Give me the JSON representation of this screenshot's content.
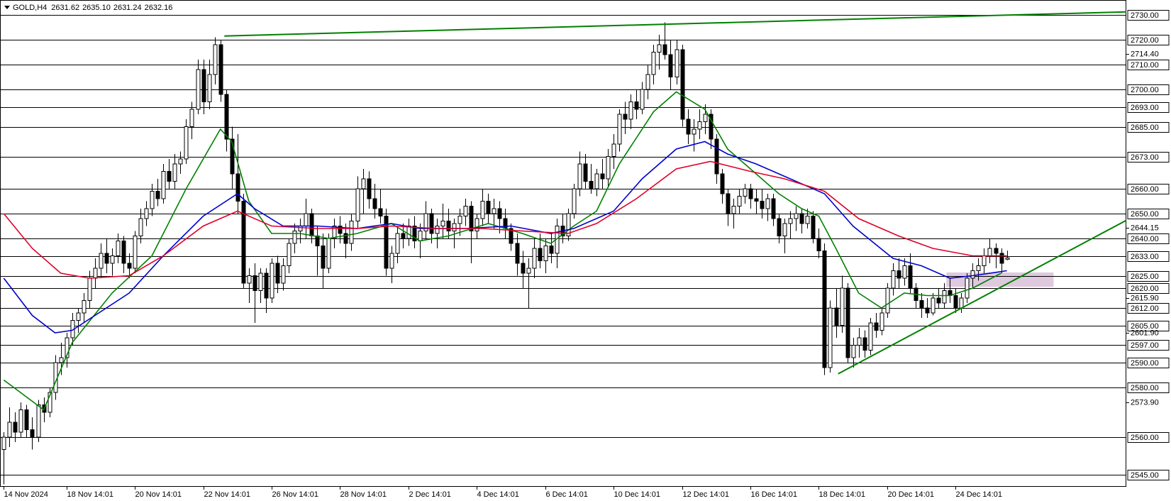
{
  "chart_data": {
    "type": "candlestick",
    "header": {
      "symbol": "GOLD,H4",
      "values": [
        "2631.62",
        "2635.10",
        "2631.24",
        "2632.16"
      ]
    },
    "up_color": "#ffffff",
    "down_color": "#000000",
    "wick_color": "#000000",
    "xlim": [
      -0.66,
      196.96
    ],
    "ylim": [
      2540,
      2736
    ],
    "xticks": [
      {
        "value": 0,
        "label": "14 Nov 2024"
      },
      {
        "value": 11,
        "label": "18 Nov 14:01"
      },
      {
        "value": 23,
        "label": "20 Nov 14:01"
      },
      {
        "value": 35,
        "label": "22 Nov 14:01"
      },
      {
        "value": 47,
        "label": "26 Nov 14:01"
      },
      {
        "value": 59,
        "label": "28 Nov 14:01"
      },
      {
        "value": 71,
        "label": "2 Dec 14:01"
      },
      {
        "value": 83,
        "label": "4 Dec 14:01"
      },
      {
        "value": 95,
        "label": "6 Dec 14:01"
      },
      {
        "value": 107,
        "label": "10 Dec 14:01"
      },
      {
        "value": 119,
        "label": "12 Dec 14:01"
      },
      {
        "value": 131,
        "label": "16 Dec 14:01"
      },
      {
        "value": 143,
        "label": "18 Dec 14:01"
      },
      {
        "value": 155,
        "label": "20 Dec 14:01"
      },
      {
        "value": 167,
        "label": "24 Dec 14:01"
      }
    ],
    "yticks": [
      {
        "value": 2714.4,
        "label": "2714.40"
      },
      {
        "value": 2644.15,
        "label": "2644.15"
      },
      {
        "value": 2615.9,
        "label": "2615.90"
      },
      {
        "value": 2601.9,
        "label": "2601.90"
      },
      {
        "value": 2573.9,
        "label": "2573.90"
      }
    ],
    "levels": [
      {
        "value": 2730,
        "label": "2730.00"
      },
      {
        "value": 2720,
        "label": "2720.00"
      },
      {
        "value": 2710,
        "label": "2710.00"
      },
      {
        "value": 2700,
        "label": "2700.00"
      },
      {
        "value": 2693,
        "label": "2693.00"
      },
      {
        "value": 2685,
        "label": "2685.00"
      },
      {
        "value": 2673,
        "label": "2673.00"
      },
      {
        "value": 2660,
        "label": "2660.00"
      },
      {
        "value": 2650,
        "label": "2650.00"
      },
      {
        "value": 2640,
        "label": "2640.00"
      },
      {
        "value": 2633,
        "label": "2633.00"
      },
      {
        "value": 2625,
        "label": "2625.00"
      },
      {
        "value": 2620,
        "label": "2620.00"
      },
      {
        "value": 2612,
        "label": "2612.00"
      },
      {
        "value": 2605,
        "label": "2605.00"
      },
      {
        "value": 2597,
        "label": "2597.00"
      },
      {
        "value": 2590,
        "label": "2590.00"
      },
      {
        "value": 2580,
        "label": "2580.00"
      },
      {
        "value": 2560,
        "label": "2560.00"
      },
      {
        "value": 2545,
        "label": "2545.00"
      }
    ],
    "ohlc": [
      [
        2555,
        2562,
        2541,
        2560
      ],
      [
        2560,
        2572,
        2556,
        2566
      ],
      [
        2566,
        2570,
        2558,
        2562
      ],
      [
        2562,
        2574,
        2560,
        2571
      ],
      [
        2571,
        2573,
        2560,
        2563
      ],
      [
        2563,
        2568,
        2555,
        2560
      ],
      [
        2560,
        2575,
        2558,
        2573
      ],
      [
        2573,
        2576,
        2566,
        2570
      ],
      [
        2570,
        2580,
        2568,
        2578
      ],
      [
        2578,
        2593,
        2575,
        2590
      ],
      [
        2590,
        2598,
        2585,
        2592
      ],
      [
        2592,
        2602,
        2588,
        2600
      ],
      [
        2600,
        2610,
        2597,
        2607
      ],
      [
        2607,
        2612,
        2602,
        2610
      ],
      [
        2610,
        2618,
        2606,
        2615
      ],
      [
        2615,
        2627,
        2612,
        2624
      ],
      [
        2624,
        2632,
        2620,
        2628
      ],
      [
        2628,
        2638,
        2624,
        2634
      ],
      [
        2634,
        2640,
        2626,
        2630
      ],
      [
        2630,
        2636,
        2625,
        2633
      ],
      [
        2633,
        2642,
        2630,
        2639
      ],
      [
        2639,
        2641,
        2626,
        2630
      ],
      [
        2630,
        2634,
        2624,
        2628
      ],
      [
        2628,
        2643,
        2626,
        2641
      ],
      [
        2641,
        2652,
        2638,
        2648
      ],
      [
        2648,
        2655,
        2645,
        2652
      ],
      [
        2652,
        2662,
        2649,
        2659
      ],
      [
        2659,
        2664,
        2653,
        2656
      ],
      [
        2656,
        2670,
        2654,
        2667
      ],
      [
        2667,
        2672,
        2660,
        2663
      ],
      [
        2663,
        2674,
        2660,
        2670
      ],
      [
        2670,
        2675,
        2666,
        2672
      ],
      [
        2672,
        2688,
        2670,
        2685
      ],
      [
        2685,
        2695,
        2680,
        2692
      ],
      [
        2692,
        2712,
        2690,
        2708
      ],
      [
        2708,
        2712,
        2690,
        2695
      ],
      [
        2695,
        2712,
        2692,
        2706
      ],
      [
        2706,
        2721,
        2702,
        2718
      ],
      [
        2718,
        2720,
        2695,
        2698
      ],
      [
        2698,
        2700,
        2675,
        2680
      ],
      [
        2680,
        2685,
        2660,
        2666
      ],
      [
        2666,
        2682,
        2650,
        2655
      ],
      [
        2655,
        2658,
        2620,
        2622
      ],
      [
        2622,
        2628,
        2614,
        2625
      ],
      [
        2625,
        2630,
        2606,
        2619
      ],
      [
        2619,
        2628,
        2614,
        2626
      ],
      [
        2626,
        2628,
        2610,
        2616
      ],
      [
        2616,
        2632,
        2614,
        2630
      ],
      [
        2630,
        2633,
        2618,
        2622
      ],
      [
        2622,
        2632,
        2619,
        2629
      ],
      [
        2629,
        2640,
        2626,
        2638
      ],
      [
        2638,
        2646,
        2634,
        2643
      ],
      [
        2643,
        2648,
        2638,
        2645
      ],
      [
        2645,
        2656,
        2640,
        2650
      ],
      [
        2650,
        2652,
        2638,
        2641
      ],
      [
        2641,
        2645,
        2625,
        2637
      ],
      [
        2637,
        2642,
        2620,
        2628
      ],
      [
        2628,
        2642,
        2626,
        2640
      ],
      [
        2640,
        2648,
        2636,
        2645
      ],
      [
        2645,
        2649,
        2638,
        2642
      ],
      [
        2642,
        2646,
        2632,
        2638
      ],
      [
        2638,
        2650,
        2635,
        2647
      ],
      [
        2647,
        2665,
        2644,
        2660
      ],
      [
        2660,
        2668,
        2650,
        2664
      ],
      [
        2664,
        2667,
        2652,
        2656
      ],
      [
        2656,
        2662,
        2648,
        2652
      ],
      [
        2652,
        2660,
        2646,
        2649
      ],
      [
        2649,
        2652,
        2625,
        2628
      ],
      [
        2628,
        2637,
        2622,
        2634
      ],
      [
        2634,
        2645,
        2630,
        2642
      ],
      [
        2642,
        2646,
        2636,
        2640
      ],
      [
        2640,
        2648,
        2637,
        2645
      ],
      [
        2645,
        2649,
        2636,
        2639
      ],
      [
        2639,
        2646,
        2632,
        2643
      ],
      [
        2643,
        2655,
        2640,
        2650
      ],
      [
        2650,
        2652,
        2638,
        2642
      ],
      [
        2642,
        2648,
        2636,
        2645
      ],
      [
        2645,
        2654,
        2640,
        2647
      ],
      [
        2647,
        2652,
        2640,
        2643
      ],
      [
        2643,
        2648,
        2636,
        2646
      ],
      [
        2646,
        2652,
        2641,
        2649
      ],
      [
        2649,
        2656,
        2645,
        2653
      ],
      [
        2653,
        2655,
        2630,
        2643
      ],
      [
        2643,
        2650,
        2640,
        2648
      ],
      [
        2648,
        2660,
        2645,
        2655
      ],
      [
        2655,
        2658,
        2646,
        2650
      ],
      [
        2650,
        2656,
        2644,
        2652
      ],
      [
        2652,
        2655,
        2642,
        2648
      ],
      [
        2648,
        2652,
        2640,
        2644
      ],
      [
        2644,
        2646,
        2635,
        2638
      ],
      [
        2638,
        2642,
        2625,
        2630
      ],
      [
        2630,
        2635,
        2620,
        2626
      ],
      [
        2626,
        2632,
        2612,
        2628
      ],
      [
        2628,
        2640,
        2624,
        2636
      ],
      [
        2636,
        2642,
        2628,
        2631
      ],
      [
        2631,
        2640,
        2626,
        2637
      ],
      [
        2637,
        2642,
        2630,
        2634
      ],
      [
        2634,
        2648,
        2628,
        2645
      ],
      [
        2645,
        2650,
        2638,
        2641
      ],
      [
        2641,
        2652,
        2639,
        2650
      ],
      [
        2650,
        2662,
        2648,
        2660
      ],
      [
        2660,
        2675,
        2657,
        2670
      ],
      [
        2670,
        2674,
        2660,
        2663
      ],
      [
        2663,
        2670,
        2658,
        2660
      ],
      [
        2660,
        2668,
        2657,
        2666
      ],
      [
        2666,
        2672,
        2660,
        2664
      ],
      [
        2664,
        2676,
        2661,
        2673
      ],
      [
        2673,
        2682,
        2668,
        2678
      ],
      [
        2678,
        2692,
        2675,
        2690
      ],
      [
        2690,
        2695,
        2682,
        2688
      ],
      [
        2688,
        2698,
        2684,
        2695
      ],
      [
        2695,
        2700,
        2688,
        2692
      ],
      [
        2692,
        2703,
        2690,
        2700
      ],
      [
        2700,
        2710,
        2696,
        2706
      ],
      [
        2706,
        2718,
        2702,
        2715
      ],
      [
        2715,
        2722,
        2708,
        2718
      ],
      [
        2718,
        2727,
        2712,
        2714
      ],
      [
        2714,
        2720,
        2700,
        2705
      ],
      [
        2705,
        2720,
        2702,
        2716
      ],
      [
        2716,
        2718,
        2685,
        2688
      ],
      [
        2688,
        2692,
        2678,
        2682
      ],
      [
        2682,
        2688,
        2675,
        2684
      ],
      [
        2684,
        2692,
        2680,
        2687
      ],
      [
        2687,
        2694,
        2682,
        2690
      ],
      [
        2690,
        2692,
        2676,
        2680
      ],
      [
        2680,
        2682,
        2662,
        2666
      ],
      [
        2666,
        2668,
        2654,
        2658
      ],
      [
        2658,
        2660,
        2645,
        2650
      ],
      [
        2650,
        2656,
        2644,
        2653
      ],
      [
        2653,
        2660,
        2650,
        2657
      ],
      [
        2657,
        2662,
        2654,
        2660
      ],
      [
        2660,
        2662,
        2652,
        2656
      ],
      [
        2656,
        2660,
        2650,
        2655
      ],
      [
        2655,
        2660,
        2648,
        2652
      ],
      [
        2652,
        2658,
        2647,
        2656
      ],
      [
        2656,
        2658,
        2645,
        2648
      ],
      [
        2648,
        2650,
        2638,
        2641
      ],
      [
        2641,
        2648,
        2634,
        2646
      ],
      [
        2646,
        2651,
        2640,
        2648
      ],
      [
        2648,
        2653,
        2643,
        2650
      ],
      [
        2650,
        2652,
        2642,
        2646
      ],
      [
        2646,
        2652,
        2644,
        2649
      ],
      [
        2649,
        2651,
        2638,
        2640
      ],
      [
        2640,
        2644,
        2632,
        2635
      ],
      [
        2635,
        2638,
        2585,
        2588
      ],
      [
        2588,
        2615,
        2586,
        2612
      ],
      [
        2612,
        2620,
        2600,
        2605
      ],
      [
        2605,
        2625,
        2602,
        2620
      ],
      [
        2620,
        2622,
        2590,
        2592
      ],
      [
        2592,
        2600,
        2588,
        2597
      ],
      [
        2597,
        2604,
        2592,
        2600
      ],
      [
        2600,
        2603,
        2592,
        2595
      ],
      [
        2595,
        2608,
        2593,
        2606
      ],
      [
        2606,
        2610,
        2600,
        2603
      ],
      [
        2603,
        2612,
        2601,
        2610
      ],
      [
        2610,
        2622,
        2608,
        2620
      ],
      [
        2620,
        2630,
        2617,
        2627
      ],
      [
        2627,
        2632,
        2620,
        2624
      ],
      [
        2624,
        2632,
        2621,
        2629
      ],
      [
        2629,
        2634,
        2618,
        2620
      ],
      [
        2620,
        2622,
        2612,
        2615
      ],
      [
        2615,
        2618,
        2608,
        2612
      ],
      [
        2612,
        2616,
        2608,
        2610
      ],
      [
        2610,
        2618,
        2609,
        2616
      ],
      [
        2616,
        2620,
        2612,
        2614
      ],
      [
        2614,
        2622,
        2612,
        2619
      ],
      [
        2619,
        2624,
        2614,
        2617
      ],
      [
        2617,
        2620,
        2610,
        2612
      ],
      [
        2612,
        2618,
        2610,
        2616
      ],
      [
        2616,
        2626,
        2614,
        2624
      ],
      [
        2624,
        2630,
        2620,
        2627
      ],
      [
        2627,
        2632,
        2623,
        2629
      ],
      [
        2629,
        2636,
        2626,
        2633
      ],
      [
        2633,
        2640,
        2630,
        2636
      ],
      [
        2636,
        2638,
        2628,
        2634
      ],
      [
        2634,
        2636,
        2626,
        2630
      ],
      [
        2631.62,
        2635.1,
        2631.24,
        2632.16
      ]
    ],
    "indicators": [
      {
        "color": "#008000",
        "x": [
          0,
          7,
          12,
          19,
          26,
          32,
          38,
          40,
          43,
          47,
          52,
          57,
          62,
          68,
          73,
          78,
          85,
          91,
          96,
          100,
          104,
          108,
          114,
          118,
          123,
          127,
          131,
          136,
          140,
          143,
          146,
          150,
          154,
          158,
          162,
          166,
          170,
          175
        ],
        "values": [
          2583,
          2571,
          2598,
          2618,
          2633,
          2660,
          2684,
          2679,
          2655,
          2642,
          2642,
          2640,
          2642,
          2646,
          2639,
          2641,
          2646,
          2642,
          2638,
          2645,
          2651,
          2670,
          2691,
          2699,
          2692,
          2676,
          2668,
          2658,
          2652,
          2649,
          2636,
          2618,
          2612,
          2618,
          2617,
          2617,
          2620,
          2626
        ]
      },
      {
        "color": "#0000cc",
        "x": [
          0,
          5,
          9,
          12,
          16,
          22,
          28,
          35,
          41,
          44,
          49,
          55,
          62,
          68,
          73,
          81,
          89,
          96,
          100,
          107,
          112,
          118,
          123,
          127,
          132,
          138,
          144,
          149,
          156,
          161,
          166,
          170,
          176
        ],
        "values": [
          2624,
          2609,
          2602,
          2603,
          2609,
          2618,
          2633,
          2649,
          2658,
          2652,
          2645,
          2645,
          2644,
          2646,
          2644,
          2644,
          2645,
          2642,
          2644,
          2651,
          2664,
          2676,
          2679,
          2674,
          2670,
          2664,
          2658,
          2645,
          2632,
          2629,
          2624,
          2625,
          2627
        ]
      },
      {
        "color": "#e0002a",
        "x": [
          0,
          5,
          10,
          15,
          22,
          28,
          35,
          41,
          47,
          55,
          62,
          68,
          76,
          84,
          91,
          99,
          104,
          111,
          118,
          124,
          131,
          137,
          144,
          150,
          157,
          163,
          170,
          176
        ],
        "values": [
          2650,
          2636,
          2626,
          2624,
          2625,
          2633,
          2645,
          2651,
          2645,
          2644,
          2644,
          2645,
          2644,
          2644,
          2643,
          2642,
          2646,
          2656,
          2668,
          2671,
          2667,
          2664,
          2659,
          2648,
          2641,
          2636,
          2633,
          2633
        ]
      }
    ],
    "trendlines": [
      {
        "color": "#008000",
        "x": [
          38.7,
          196.96
        ],
        "values": [
          2721.5,
          2731.2
        ]
      },
      {
        "color": "#008000",
        "x": [
          146.4,
          196.96
        ],
        "values": [
          2585.5,
          2647.3
        ]
      }
    ],
    "zones": [
      {
        "color": "#d8bfd8",
        "x": [
          165.4,
          184.2
        ],
        "values": [
          2620.5,
          2626.3
        ]
      }
    ]
  }
}
